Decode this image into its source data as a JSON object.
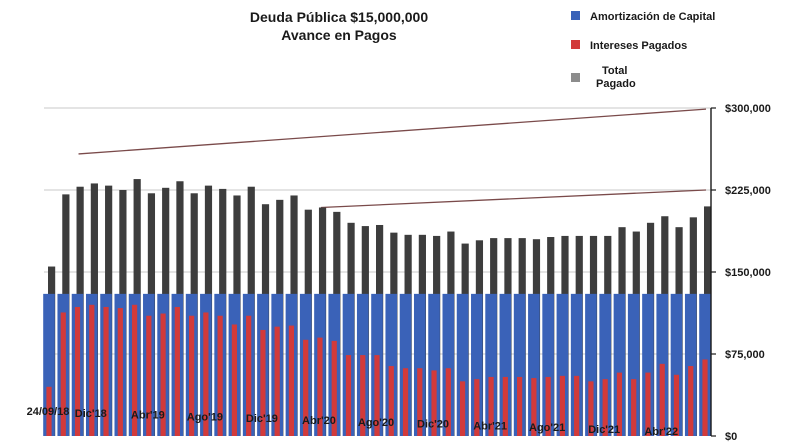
{
  "chart_data": {
    "type": "bar",
    "title": "Deuda Pública $15,000,000",
    "subtitle": "Avance en Pagos",
    "legend_position": "top-right",
    "legend": [
      {
        "label": "Amortización de Capital",
        "color": "#3a62b8"
      },
      {
        "label": "Intereses Pagados",
        "color": "#d23a3a"
      },
      {
        "label": "Total\nPagado",
        "color": "#8c8c8c"
      }
    ],
    "y_ticks": [
      {
        "value": 0,
        "label": "$0"
      },
      {
        "value": 75000,
        "label": "$75,000"
      },
      {
        "value": 150000,
        "label": "$150,000"
      },
      {
        "value": 225000,
        "label": "$225,000"
      },
      {
        "value": 300000,
        "label": "$300,000"
      }
    ],
    "ylim": [
      0,
      300000
    ],
    "grid": true,
    "x_labels": [
      {
        "index": 0,
        "label": "24/09/18"
      },
      {
        "index": 3,
        "label": "Dic'18"
      },
      {
        "index": 7,
        "label": "Abr'19"
      },
      {
        "index": 11,
        "label": "Ago'19"
      },
      {
        "index": 15,
        "label": "Dic'19"
      },
      {
        "index": 19,
        "label": "Abr'20"
      },
      {
        "index": 23,
        "label": "Ago'20"
      },
      {
        "index": 27,
        "label": "Dic'20"
      },
      {
        "index": 31,
        "label": "Abr'21"
      },
      {
        "index": 35,
        "label": "Ago'21"
      },
      {
        "index": 39,
        "label": "Dic'21"
      },
      {
        "index": 43,
        "label": "Abr'22"
      }
    ],
    "series": [
      {
        "name": "Amortización de Capital",
        "color": "#3a62b8",
        "values": [
          130000,
          130000,
          130000,
          130000,
          130000,
          130000,
          130000,
          130000,
          130000,
          130000,
          130000,
          130000,
          130000,
          130000,
          130000,
          130000,
          130000,
          130000,
          130000,
          130000,
          130000,
          130000,
          130000,
          130000,
          130000,
          130000,
          130000,
          130000,
          130000,
          130000,
          130000,
          130000,
          130000,
          130000,
          130000,
          130000,
          130000,
          130000,
          130000,
          130000,
          130000,
          130000,
          130000,
          130000,
          130000,
          130000,
          130000
        ]
      },
      {
        "name": "Intereses Pagados",
        "color": "#d23a3a",
        "values": [
          45000,
          113000,
          118000,
          120000,
          118000,
          117000,
          120000,
          110000,
          112000,
          118000,
          110000,
          113000,
          110000,
          102000,
          110000,
          97000,
          100000,
          101000,
          88000,
          90000,
          87000,
          74000,
          74000,
          74000,
          64000,
          62000,
          62000,
          60000,
          62000,
          50000,
          52000,
          54000,
          54000,
          54000,
          53000,
          54000,
          55000,
          55000,
          50000,
          52000,
          58000,
          52000,
          58000,
          66000,
          56000,
          64000,
          70000
        ]
      },
      {
        "name": "Total Pagado",
        "color": "#3d3d3d",
        "values": [
          155000,
          221000,
          228000,
          231000,
          229000,
          225000,
          235000,
          222000,
          227000,
          233000,
          222000,
          229000,
          226000,
          220000,
          228000,
          212000,
          216000,
          220000,
          207000,
          209000,
          205000,
          195000,
          192000,
          193000,
          186000,
          184000,
          184000,
          183000,
          187000,
          176000,
          179000,
          181000,
          181000,
          181000,
          180000,
          182000,
          183000,
          183000,
          183000,
          183000,
          191000,
          187000,
          195000,
          201000,
          191000,
          200000,
          210000
        ]
      }
    ],
    "trend_lines": [
      {
        "from_index": 2,
        "to_index": 46,
        "y_start": 258000,
        "y_end": 299000
      },
      {
        "from_index": 19,
        "to_index": 46,
        "y_start": 209000,
        "y_end": 225000
      }
    ]
  }
}
